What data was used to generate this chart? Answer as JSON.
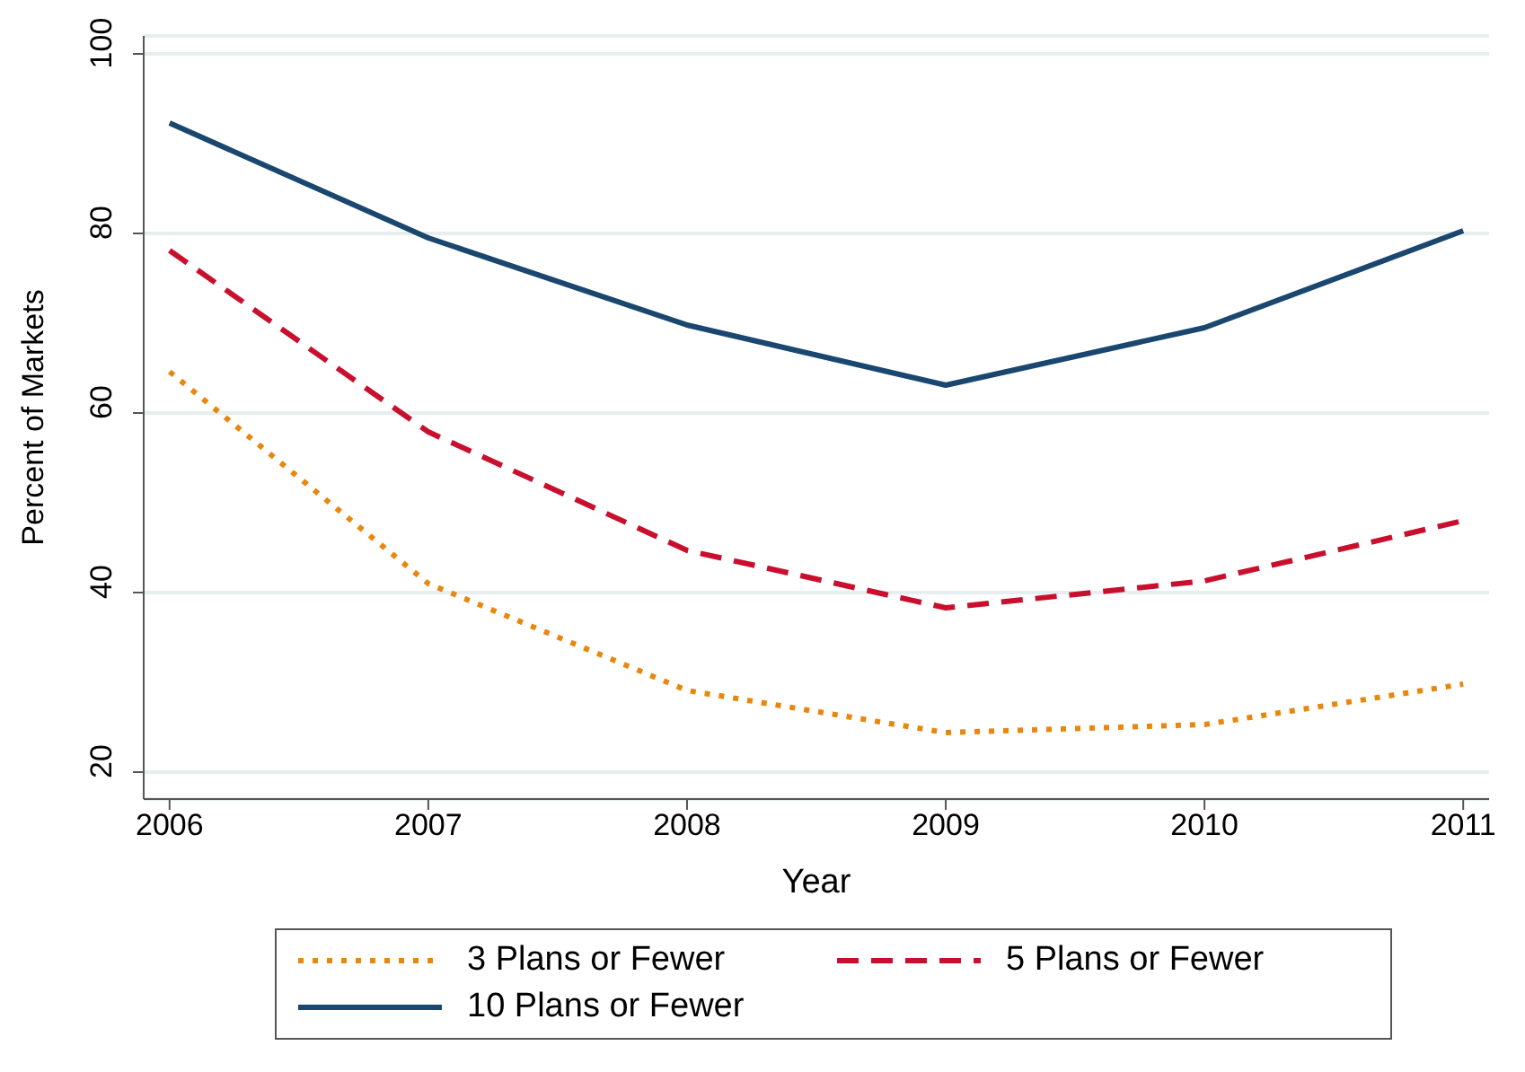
{
  "chart_data": {
    "type": "line",
    "xlabel": "Year",
    "ylabel": "Percent of Markets",
    "x": [
      2006,
      2007,
      2008,
      2009,
      2010,
      2011
    ],
    "xlim": [
      2005.9,
      2011.1
    ],
    "xticks": [
      2006,
      2007,
      2008,
      2009,
      2010,
      2011
    ],
    "ylim": [
      17,
      102
    ],
    "yticks": [
      20,
      40,
      60,
      80,
      100
    ],
    "grid": "y",
    "legend": "bottom",
    "marker": "none",
    "series": [
      {
        "name": "3 Plans or Fewer",
        "color": "#e8870e",
        "line_style": "dotted",
        "values": [
          64.6,
          41.0,
          29.1,
          24.4,
          25.3,
          29.8
        ]
      },
      {
        "name": "5 Plans or Fewer",
        "color": "#c8102e",
        "line_style": "dashed",
        "values": [
          78.1,
          57.9,
          44.7,
          38.3,
          41.3,
          48.0
        ]
      },
      {
        "name": "10 Plans or Fewer",
        "color": "#1a476f",
        "line_style": "solid",
        "values": [
          92.3,
          79.5,
          69.8,
          63.1,
          69.5,
          80.3
        ]
      }
    ]
  }
}
